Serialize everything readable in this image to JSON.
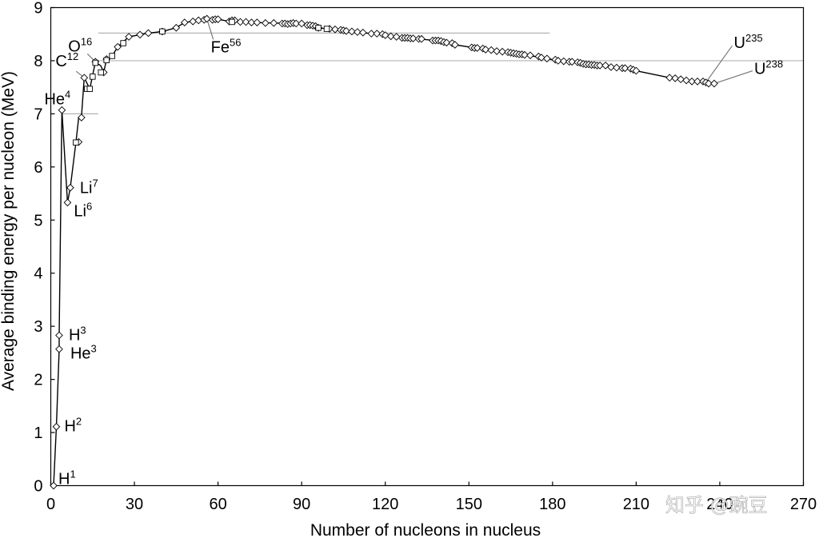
{
  "chart_data": {
    "type": "scatter",
    "title": "",
    "xlabel": "Number of nucleons in nucleus",
    "ylabel": "Average binding energy per nucleon (MeV)",
    "xlim": [
      0,
      270
    ],
    "ylim": [
      0,
      9
    ],
    "xticks": [
      "0",
      "30",
      "60",
      "90",
      "120",
      "150",
      "180",
      "210",
      "240",
      "270"
    ],
    "yticks": [
      "0",
      "1",
      "2",
      "3",
      "4",
      "5",
      "6",
      "7",
      "8",
      "9"
    ],
    "grid": false,
    "reference_lines": [
      {
        "y": 8.52,
        "x_start": 17,
        "x_end": 179
      },
      {
        "y": 8.0,
        "x_start": 17,
        "x_end": 270
      },
      {
        "y": 7.0,
        "x_start": 4,
        "x_end": 17
      }
    ],
    "series": [
      {
        "marker": "diamond",
        "points": [
          [
            1,
            0
          ],
          [
            2,
            1.11
          ],
          [
            3,
            2.83
          ],
          [
            3,
            2.57
          ],
          [
            4,
            7.07
          ],
          [
            6,
            5.33
          ],
          [
            7,
            5.61
          ],
          [
            10,
            6.47
          ],
          [
            11,
            6.93
          ],
          [
            12,
            7.68
          ],
          [
            16,
            7.98
          ],
          [
            19,
            7.78
          ],
          [
            20,
            8.03
          ],
          [
            24,
            8.26
          ],
          [
            28,
            8.45
          ],
          [
            32,
            8.49
          ],
          [
            35,
            8.52
          ],
          [
            40,
            8.55
          ],
          [
            45,
            8.62
          ],
          [
            48,
            8.72
          ],
          [
            51,
            8.74
          ],
          [
            53,
            8.76
          ],
          [
            55,
            8.77
          ],
          [
            56,
            8.79
          ],
          [
            58,
            8.77
          ],
          [
            59,
            8.78
          ],
          [
            60,
            8.78
          ],
          [
            64,
            8.74
          ],
          [
            65,
            8.76
          ],
          [
            66,
            8.76
          ],
          [
            68,
            8.73
          ],
          [
            70,
            8.73
          ],
          [
            72,
            8.72
          ],
          [
            74,
            8.72
          ],
          [
            77,
            8.71
          ],
          [
            80,
            8.71
          ],
          [
            83,
            8.7
          ],
          [
            84,
            8.7
          ],
          [
            85,
            8.69
          ],
          [
            86,
            8.7
          ],
          [
            87,
            8.71
          ],
          [
            88,
            8.7
          ],
          [
            90,
            8.7
          ],
          [
            92,
            8.67
          ],
          [
            93,
            8.67
          ],
          [
            94,
            8.66
          ],
          [
            95,
            8.65
          ],
          [
            96,
            8.62
          ],
          [
            100,
            8.6
          ],
          [
            102,
            8.59
          ],
          [
            104,
            8.58
          ],
          [
            105,
            8.57
          ],
          [
            106,
            8.56
          ],
          [
            108,
            8.55
          ],
          [
            110,
            8.54
          ],
          [
            112,
            8.53
          ],
          [
            115,
            8.51
          ],
          [
            117,
            8.51
          ],
          [
            119,
            8.5
          ],
          [
            120,
            8.48
          ],
          [
            122,
            8.46
          ],
          [
            124,
            8.45
          ],
          [
            126,
            8.43
          ],
          [
            127,
            8.43
          ],
          [
            128,
            8.43
          ],
          [
            129,
            8.42
          ],
          [
            130,
            8.42
          ],
          [
            132,
            8.41
          ],
          [
            133,
            8.41
          ],
          [
            137,
            8.38
          ],
          [
            138,
            8.38
          ],
          [
            139,
            8.38
          ],
          [
            140,
            8.37
          ],
          [
            141,
            8.35
          ],
          [
            142,
            8.34
          ],
          [
            144,
            8.33
          ],
          [
            145,
            8.3
          ],
          [
            151,
            8.25
          ],
          [
            152,
            8.24
          ],
          [
            153,
            8.24
          ],
          [
            155,
            8.23
          ],
          [
            156,
            8.21
          ],
          [
            158,
            8.2
          ],
          [
            160,
            8.18
          ],
          [
            162,
            8.17
          ],
          [
            164,
            8.16
          ],
          [
            165,
            8.15
          ],
          [
            166,
            8.14
          ],
          [
            167,
            8.13
          ],
          [
            168,
            8.12
          ],
          [
            169,
            8.12
          ],
          [
            170,
            8.11
          ],
          [
            172,
            8.1
          ],
          [
            175,
            8.08
          ],
          [
            176,
            8.06
          ],
          [
            178,
            8.04
          ],
          [
            181,
            8.02
          ],
          [
            182,
            8.0
          ],
          [
            184,
            7.99
          ],
          [
            186,
            7.98
          ],
          [
            187,
            7.98
          ],
          [
            189,
            7.97
          ],
          [
            190,
            7.96
          ],
          [
            191,
            7.94
          ],
          [
            192,
            7.93
          ],
          [
            193,
            7.93
          ],
          [
            194,
            7.92
          ],
          [
            195,
            7.92
          ],
          [
            196,
            7.91
          ],
          [
            197,
            7.91
          ],
          [
            199,
            7.91
          ],
          [
            201,
            7.88
          ],
          [
            203,
            7.87
          ],
          [
            205,
            7.86
          ],
          [
            206,
            7.86
          ],
          [
            208,
            7.85
          ],
          [
            209,
            7.83
          ],
          [
            210,
            7.81
          ],
          [
            222,
            7.68
          ],
          [
            224,
            7.67
          ],
          [
            226,
            7.65
          ],
          [
            228,
            7.63
          ],
          [
            230,
            7.61
          ],
          [
            232,
            7.61
          ],
          [
            234,
            7.61
          ],
          [
            235,
            7.59
          ],
          [
            236,
            7.57
          ],
          [
            238,
            7.57
          ]
        ]
      },
      {
        "marker": "square",
        "points": [
          [
            9,
            6.46
          ],
          [
            13,
            7.47
          ],
          [
            14,
            7.47
          ],
          [
            15,
            7.7
          ],
          [
            16,
            7.96
          ],
          [
            18,
            7.78
          ],
          [
            20,
            8.01
          ],
          [
            22,
            8.09
          ],
          [
            26,
            8.33
          ],
          [
            40,
            8.55
          ],
          [
            65,
            8.73
          ],
          [
            96,
            8.62
          ],
          [
            99,
            8.6
          ]
        ]
      }
    ],
    "line_path": [
      [
        1,
        0
      ],
      [
        2,
        1.11
      ],
      [
        3,
        2.57
      ],
      [
        3,
        2.83
      ],
      [
        4,
        7.07
      ],
      [
        6,
        5.33
      ],
      [
        7,
        5.61
      ],
      [
        9,
        6.46
      ],
      [
        10,
        6.93
      ],
      [
        11,
        6.93
      ],
      [
        12,
        7.68
      ],
      [
        14,
        7.47
      ],
      [
        16,
        7.98
      ],
      [
        18,
        7.9
      ],
      [
        19,
        7.78
      ],
      [
        20,
        8.03
      ],
      [
        22,
        8.09
      ],
      [
        24,
        8.26
      ],
      [
        28,
        8.45
      ],
      [
        32,
        8.49
      ],
      [
        35,
        8.52
      ],
      [
        40,
        8.55
      ],
      [
        45,
        8.62
      ],
      [
        48,
        8.72
      ],
      [
        51,
        8.74
      ],
      [
        53,
        8.76
      ],
      [
        56,
        8.79
      ],
      [
        60,
        8.78
      ],
      [
        64,
        8.74
      ],
      [
        66,
        8.76
      ],
      [
        68,
        8.73
      ],
      [
        72,
        8.72
      ],
      [
        80,
        8.71
      ],
      [
        88,
        8.7
      ],
      [
        92,
        8.67
      ],
      [
        96,
        8.62
      ],
      [
        99,
        8.6
      ],
      [
        104,
        8.58
      ],
      [
        110,
        8.54
      ],
      [
        115,
        8.51
      ],
      [
        120,
        8.48
      ],
      [
        126,
        8.43
      ],
      [
        132,
        8.41
      ],
      [
        138,
        8.38
      ],
      [
        144,
        8.33
      ],
      [
        145,
        8.3
      ],
      [
        151,
        8.25
      ],
      [
        158,
        8.2
      ],
      [
        164,
        8.16
      ],
      [
        170,
        8.11
      ],
      [
        176,
        8.06
      ],
      [
        182,
        8.0
      ],
      [
        188,
        7.97
      ],
      [
        194,
        7.92
      ],
      [
        199,
        7.91
      ],
      [
        205,
        7.86
      ],
      [
        210,
        7.81
      ],
      [
        222,
        7.68
      ],
      [
        226,
        7.65
      ],
      [
        230,
        7.61
      ],
      [
        234,
        7.61
      ],
      [
        238,
        7.57
      ]
    ],
    "annotations": [
      {
        "base": "H",
        "sup": "1",
        "x": 1,
        "y": 0
      },
      {
        "base": "H",
        "sup": "2",
        "x": 2,
        "y": 1.11
      },
      {
        "base": "H",
        "sup": "3",
        "x": 3,
        "y": 2.83
      },
      {
        "base": "He",
        "sup": "3",
        "x": 3,
        "y": 2.57
      },
      {
        "base": "He",
        "sup": "4",
        "x": 4,
        "y": 7.07
      },
      {
        "base": "Li",
        "sup": "6",
        "x": 6,
        "y": 5.33
      },
      {
        "base": "Li",
        "sup": "7",
        "x": 7,
        "y": 5.61
      },
      {
        "base": "C",
        "sup": "12",
        "x": 12,
        "y": 7.68
      },
      {
        "base": "O",
        "sup": "16",
        "x": 16,
        "y": 7.98
      },
      {
        "base": "Fe",
        "sup": "56",
        "x": 56,
        "y": 8.79
      },
      {
        "base": "U",
        "sup": "235",
        "x": 235,
        "y": 7.59
      },
      {
        "base": "U",
        "sup": "238",
        "x": 238,
        "y": 7.57
      }
    ]
  },
  "watermark": "知乎 @豌豆"
}
